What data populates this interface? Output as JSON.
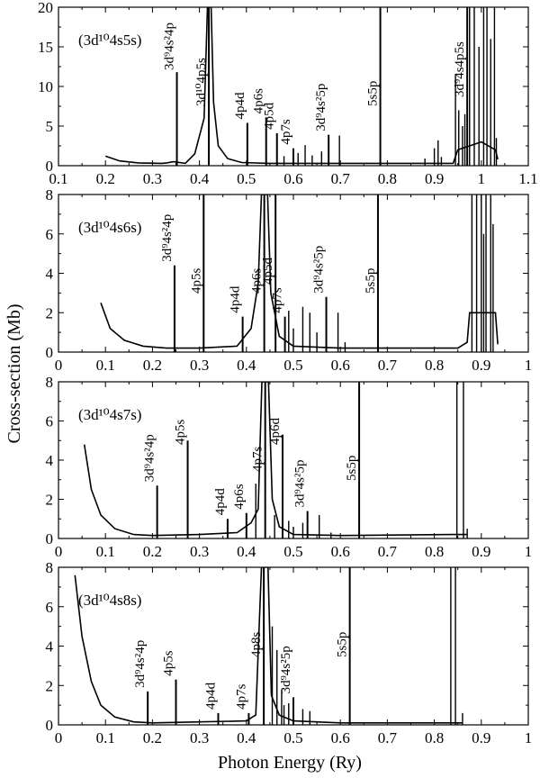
{
  "figure": {
    "ylabel": "Cross-section (Mb)",
    "xlabel": "Photon Energy (Ry)"
  },
  "chart_data": [
    {
      "type": "line",
      "state_label": "(3d¹⁰4s5s)",
      "xlim": [
        0.1,
        1.1
      ],
      "ylim": [
        0,
        20
      ],
      "xticks": [
        0.1,
        0.2,
        0.3,
        0.4,
        0.5,
        0.6,
        0.7,
        0.8,
        0.9,
        1,
        1.1
      ],
      "xtick_labels": [
        "0.1",
        "0.2",
        "0.3",
        "0.4",
        "0.5",
        "0.6",
        "0.7",
        "0.8",
        "0.9",
        "1",
        "1.1"
      ],
      "yticks": [
        0,
        5,
        10,
        15,
        20
      ],
      "ytick_labels": [
        "0",
        "5",
        "10",
        "15",
        "20"
      ],
      "background": [
        [
          0.2,
          1.2
        ],
        [
          0.23,
          0.6
        ],
        [
          0.27,
          0.35
        ],
        [
          0.32,
          0.3
        ],
        [
          0.33,
          0.35
        ],
        [
          0.345,
          0.5
        ],
        [
          0.37,
          0.3
        ],
        [
          0.39,
          1.5
        ],
        [
          0.41,
          6
        ],
        [
          0.417,
          20
        ],
        [
          0.425,
          20
        ],
        [
          0.43,
          8
        ],
        [
          0.44,
          2.5
        ],
        [
          0.46,
          0.9
        ],
        [
          0.49,
          0.4
        ],
        [
          0.55,
          0.3
        ],
        [
          0.75,
          0.3
        ],
        [
          0.94,
          0.3
        ],
        [
          0.95,
          2
        ],
        [
          1.0,
          3
        ],
        [
          1.03,
          2
        ],
        [
          1.035,
          0.8
        ]
      ],
      "resonances": [
        {
          "x": 0.352,
          "y": 11.8,
          "label": "3d⁹4s²4p"
        },
        {
          "x": 0.42,
          "y": 20,
          "label": "3d¹⁰4p5s"
        },
        {
          "x": 0.502,
          "y": 5.4,
          "label": "4p4d"
        },
        {
          "x": 0.542,
          "y": 6.1,
          "label": "4p6s"
        },
        {
          "x": 0.565,
          "y": 4.1,
          "label": "4p5d"
        },
        {
          "x": 0.6,
          "y": 2.2,
          "label": "4p7s"
        },
        {
          "x": 0.675,
          "y": 3.9,
          "label": "3d⁹4s²5p"
        },
        {
          "x": 0.785,
          "y": 20,
          "label": "5s5p"
        },
        {
          "x": 0.97,
          "y": 20,
          "label": "3d⁹4s4p5s"
        }
      ],
      "minor_peaks": [
        [
          0.58,
          1.2
        ],
        [
          0.61,
          1.6
        ],
        [
          0.625,
          2.6
        ],
        [
          0.64,
          1.3
        ],
        [
          0.66,
          1.8
        ],
        [
          0.698,
          3.8
        ],
        [
          0.88,
          0.9
        ],
        [
          0.9,
          2.2
        ],
        [
          0.908,
          3.2
        ],
        [
          0.915,
          1.1
        ],
        [
          0.945,
          11.5
        ],
        [
          0.952,
          7
        ],
        [
          0.96,
          5
        ],
        [
          0.965,
          6.5
        ],
        [
          0.975,
          20
        ],
        [
          0.985,
          20
        ],
        [
          0.995,
          15
        ],
        [
          1.005,
          20
        ],
        [
          1.012,
          20
        ],
        [
          1.02,
          16
        ],
        [
          1.028,
          20
        ],
        [
          1.032,
          3.5
        ]
      ]
    },
    {
      "type": "line",
      "state_label": "(3d¹⁰4s6s)",
      "xlim": [
        0,
        1
      ],
      "ylim": [
        0,
        8
      ],
      "xticks": [
        0,
        0.1,
        0.2,
        0.3,
        0.4,
        0.5,
        0.6,
        0.7,
        0.8,
        0.9,
        1
      ],
      "xtick_labels": [
        "0",
        "0.1",
        "0.2",
        "0.3",
        "0.4",
        "0.5",
        "0.6",
        "0.7",
        "0.8",
        "0.9",
        "1"
      ],
      "yticks": [
        0,
        2,
        4,
        6,
        8
      ],
      "ytick_labels": [
        "0",
        "2",
        "4",
        "6",
        "8"
      ],
      "background": [
        [
          0.09,
          2.5
        ],
        [
          0.11,
          1.2
        ],
        [
          0.14,
          0.6
        ],
        [
          0.18,
          0.3
        ],
        [
          0.23,
          0.2
        ],
        [
          0.3,
          0.2
        ],
        [
          0.38,
          0.3
        ],
        [
          0.41,
          1.2
        ],
        [
          0.425,
          3.5
        ],
        [
          0.432,
          8
        ],
        [
          0.445,
          8
        ],
        [
          0.452,
          3
        ],
        [
          0.47,
          0.8
        ],
        [
          0.5,
          0.3
        ],
        [
          0.6,
          0.2
        ],
        [
          0.85,
          0.2
        ],
        [
          0.87,
          0.5
        ],
        [
          0.875,
          2
        ],
        [
          0.93,
          2
        ],
        [
          0.935,
          0.4
        ]
      ],
      "resonances": [
        {
          "x": 0.247,
          "y": 4.4,
          "label": "3d⁹4s²4p"
        },
        {
          "x": 0.309,
          "y": 8,
          "label": "4p5s"
        },
        {
          "x": 0.392,
          "y": 1.8,
          "label": "4p4d"
        },
        {
          "x": 0.438,
          "y": 8,
          "label": "4p6s"
        },
        {
          "x": 0.462,
          "y": 8,
          "label": "4p5d"
        },
        {
          "x": 0.482,
          "y": 1.8,
          "label": "4p7s"
        },
        {
          "x": 0.57,
          "y": 2.8,
          "label": "3d⁹4s²5p"
        },
        {
          "x": 0.68,
          "y": 8,
          "label": "5s5p"
        }
      ],
      "minor_peaks": [
        [
          0.49,
          2.1
        ],
        [
          0.5,
          1.2
        ],
        [
          0.52,
          2.3
        ],
        [
          0.535,
          2.0
        ],
        [
          0.55,
          1.0
        ],
        [
          0.595,
          2.0
        ],
        [
          0.61,
          0.5
        ],
        [
          0.88,
          8
        ],
        [
          0.89,
          8
        ],
        [
          0.9,
          8
        ],
        [
          0.905,
          6
        ],
        [
          0.91,
          8
        ],
        [
          0.92,
          8
        ],
        [
          0.925,
          6.5
        ]
      ]
    },
    {
      "type": "line",
      "state_label": "(3d¹⁰4s7s)",
      "xlim": [
        0,
        1
      ],
      "ylim": [
        0,
        8
      ],
      "xticks": [
        0,
        0.1,
        0.2,
        0.3,
        0.4,
        0.5,
        0.6,
        0.7,
        0.8,
        0.9,
        1
      ],
      "xtick_labels": [
        "0",
        "0.1",
        "0.2",
        "0.3",
        "0.4",
        "0.5",
        "0.6",
        "0.7",
        "0.8",
        "0.9",
        "1"
      ],
      "yticks": [
        0,
        2,
        4,
        6,
        8
      ],
      "ytick_labels": [
        "0",
        "2",
        "4",
        "6",
        "8"
      ],
      "background": [
        [
          0.055,
          4.8
        ],
        [
          0.07,
          2.5
        ],
        [
          0.09,
          1.2
        ],
        [
          0.12,
          0.5
        ],
        [
          0.16,
          0.2
        ],
        [
          0.2,
          0.15
        ],
        [
          0.3,
          0.2
        ],
        [
          0.38,
          0.3
        ],
        [
          0.41,
          0.8
        ],
        [
          0.425,
          1.5
        ],
        [
          0.433,
          8
        ],
        [
          0.447,
          8
        ],
        [
          0.455,
          2
        ],
        [
          0.47,
          0.6
        ],
        [
          0.5,
          0.2
        ],
        [
          0.6,
          0.15
        ],
        [
          0.84,
          0.2
        ],
        [
          0.87,
          0.2
        ]
      ],
      "resonances": [
        {
          "x": 0.21,
          "y": 2.7,
          "label": "3d⁹4s²4p"
        },
        {
          "x": 0.275,
          "y": 5.0,
          "label": "4p5s"
        },
        {
          "x": 0.36,
          "y": 1.0,
          "label": "4p4d"
        },
        {
          "x": 0.4,
          "y": 1.3,
          "label": "4p6s"
        },
        {
          "x": 0.44,
          "y": 8,
          "label": "4p7s"
        },
        {
          "x": 0.477,
          "y": 5.3,
          "label": "4p6d"
        },
        {
          "x": 0.53,
          "y": 1.4,
          "label": "3d⁹4s²5p"
        },
        {
          "x": 0.64,
          "y": 8,
          "label": "5s5p"
        }
      ],
      "minor_peaks": [
        [
          0.42,
          2.8
        ],
        [
          0.46,
          1.2
        ],
        [
          0.49,
          0.9
        ],
        [
          0.5,
          0.6
        ],
        [
          0.52,
          0.8
        ],
        [
          0.555,
          1.2
        ],
        [
          0.58,
          0.3
        ],
        [
          0.848,
          8
        ],
        [
          0.862,
          8
        ],
        [
          0.87,
          0.5
        ]
      ]
    },
    {
      "type": "line",
      "state_label": "(3d¹⁰4s8s)",
      "xlim": [
        0,
        1
      ],
      "ylim": [
        0,
        8
      ],
      "xticks": [
        0,
        0.1,
        0.2,
        0.3,
        0.4,
        0.5,
        0.6,
        0.7,
        0.8,
        0.9,
        1
      ],
      "xtick_labels": [
        "0",
        "0.1",
        "0.2",
        "0.3",
        "0.4",
        "0.5",
        "0.6",
        "0.7",
        "0.8",
        "0.9",
        "1"
      ],
      "yticks": [
        0,
        2,
        4,
        6,
        8
      ],
      "ytick_labels": [
        "0",
        "2",
        "4",
        "6",
        "8"
      ],
      "background": [
        [
          0.035,
          7.6
        ],
        [
          0.05,
          4.5
        ],
        [
          0.07,
          2.2
        ],
        [
          0.09,
          1.0
        ],
        [
          0.12,
          0.4
        ],
        [
          0.16,
          0.15
        ],
        [
          0.2,
          0.1
        ],
        [
          0.3,
          0.15
        ],
        [
          0.4,
          0.2
        ],
        [
          0.42,
          0.5
        ],
        [
          0.432,
          8
        ],
        [
          0.446,
          8
        ],
        [
          0.453,
          1.5
        ],
        [
          0.47,
          0.5
        ],
        [
          0.5,
          0.2
        ],
        [
          0.6,
          0.1
        ],
        [
          0.84,
          0.1
        ],
        [
          0.86,
          0.1
        ]
      ],
      "resonances": [
        {
          "x": 0.19,
          "y": 1.7,
          "label": "3d⁹4s²4p"
        },
        {
          "x": 0.25,
          "y": 2.3,
          "label": "4p5s"
        },
        {
          "x": 0.34,
          "y": 0.6,
          "label": "4p4d"
        },
        {
          "x": 0.405,
          "y": 0.6,
          "label": "4p7s"
        },
        {
          "x": 0.437,
          "y": 8,
          "label": "4p8s"
        },
        {
          "x": 0.5,
          "y": 1.4,
          "label": "3d⁹4s²5p"
        },
        {
          "x": 0.62,
          "y": 8,
          "label": "5s5p"
        }
      ],
      "minor_peaks": [
        [
          0.455,
          5.0
        ],
        [
          0.465,
          3.8
        ],
        [
          0.475,
          1.8
        ],
        [
          0.48,
          1.0
        ],
        [
          0.49,
          1.1
        ],
        [
          0.52,
          0.8
        ],
        [
          0.535,
          0.7
        ],
        [
          0.835,
          8
        ],
        [
          0.845,
          8
        ],
        [
          0.86,
          0.6
        ]
      ]
    }
  ]
}
